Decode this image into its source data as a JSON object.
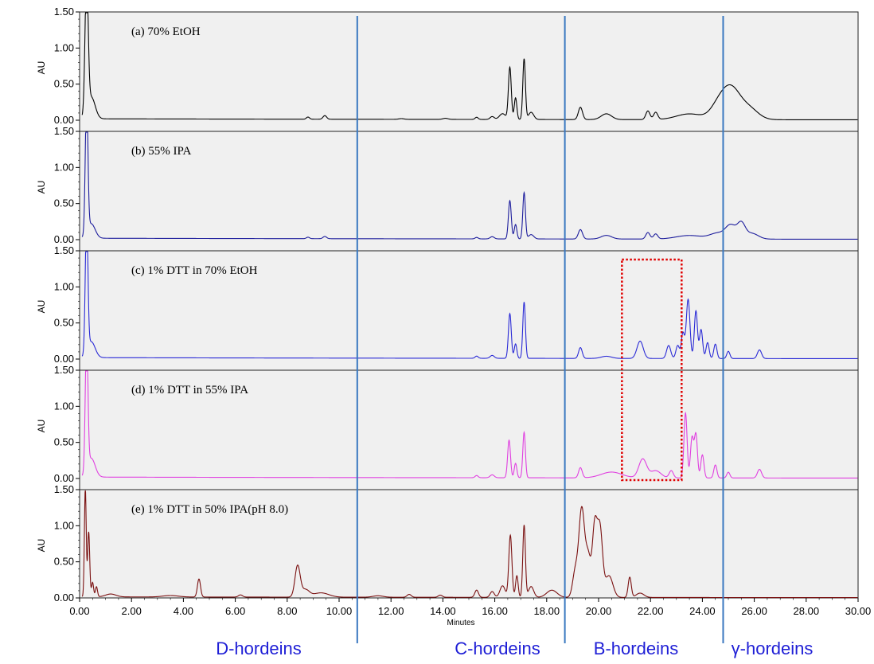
{
  "chart_data": {
    "type": "line",
    "x_axis": {
      "label": "Minutes",
      "range": [
        0,
        30
      ],
      "ticks": [
        "0.00",
        "2.00",
        "4.00",
        "6.00",
        "8.00",
        "10.00",
        "12.00",
        "14.00",
        "16.00",
        "18.00",
        "20.00",
        "22.00",
        "24.00",
        "26.00",
        "28.00",
        "30.00"
      ]
    },
    "y_axis": {
      "label": "AU",
      "range": [
        0,
        1.5
      ],
      "ticks": [
        "0.00",
        "0.50",
        "1.00",
        "1.50"
      ]
    },
    "grid": false,
    "dividers_minutes": [
      10.7,
      18.7,
      24.8
    ],
    "regions": [
      "D-hordeins",
      "C-hordeins",
      "B-hordeins",
      "γ-hordeins"
    ],
    "highlight_box": {
      "x_range": [
        20.9,
        23.2
      ],
      "panels": [
        "c",
        "d"
      ],
      "color": "#e00000"
    },
    "panels": [
      {
        "id": "a",
        "title": "(a) 70% EtOH",
        "color": "#000000",
        "baseline": 0.02,
        "peaks": [
          [
            0.27,
            1.9,
            0.06
          ],
          [
            0.45,
            0.3,
            0.15
          ],
          [
            8.8,
            0.03,
            0.06
          ],
          [
            9.45,
            0.05,
            0.07
          ],
          [
            12.4,
            0.01,
            0.1
          ],
          [
            14.1,
            0.015,
            0.1
          ],
          [
            15.3,
            0.03,
            0.06
          ],
          [
            15.9,
            0.04,
            0.08
          ],
          [
            16.3,
            0.08,
            0.12
          ],
          [
            16.58,
            0.72,
            0.055
          ],
          [
            16.8,
            0.3,
            0.05
          ],
          [
            17.13,
            0.84,
            0.05
          ],
          [
            17.4,
            0.1,
            0.1
          ],
          [
            19.3,
            0.17,
            0.08
          ],
          [
            20.3,
            0.08,
            0.2
          ],
          [
            21.9,
            0.12,
            0.08
          ],
          [
            22.2,
            0.1,
            0.08
          ],
          [
            23.5,
            0.08,
            0.5
          ],
          [
            24.6,
            0.16,
            0.3
          ],
          [
            25.1,
            0.42,
            0.35
          ],
          [
            25.8,
            0.15,
            0.35
          ]
        ]
      },
      {
        "id": "b",
        "title": "(b) 55% IPA",
        "color": "#1c1c9c",
        "baseline": 0.02,
        "peaks": [
          [
            0.27,
            1.9,
            0.05
          ],
          [
            0.45,
            0.2,
            0.15
          ],
          [
            8.8,
            0.02,
            0.06
          ],
          [
            9.45,
            0.03,
            0.07
          ],
          [
            15.3,
            0.02,
            0.06
          ],
          [
            15.9,
            0.03,
            0.08
          ],
          [
            16.58,
            0.53,
            0.055
          ],
          [
            16.8,
            0.2,
            0.05
          ],
          [
            17.13,
            0.64,
            0.05
          ],
          [
            17.4,
            0.06,
            0.1
          ],
          [
            19.3,
            0.13,
            0.08
          ],
          [
            20.3,
            0.05,
            0.2
          ],
          [
            21.9,
            0.09,
            0.08
          ],
          [
            22.2,
            0.07,
            0.08
          ],
          [
            23.5,
            0.05,
            0.5
          ],
          [
            24.6,
            0.08,
            0.3
          ],
          [
            25.1,
            0.18,
            0.2
          ],
          [
            25.5,
            0.2,
            0.15
          ],
          [
            25.9,
            0.08,
            0.25
          ]
        ]
      },
      {
        "id": "c",
        "title": "(c) 1% DTT in 70% EtOH",
        "color": "#2a2ad6",
        "baseline": 0.02,
        "peaks": [
          [
            0.27,
            1.9,
            0.05
          ],
          [
            0.45,
            0.22,
            0.15
          ],
          [
            15.3,
            0.03,
            0.06
          ],
          [
            15.9,
            0.04,
            0.08
          ],
          [
            16.58,
            0.62,
            0.055
          ],
          [
            16.8,
            0.2,
            0.05
          ],
          [
            17.13,
            0.78,
            0.05
          ],
          [
            19.3,
            0.15,
            0.07
          ],
          [
            20.3,
            0.03,
            0.2
          ],
          [
            21.6,
            0.24,
            0.12
          ],
          [
            22.7,
            0.18,
            0.08
          ],
          [
            23.05,
            0.18,
            0.07
          ],
          [
            23.25,
            0.35,
            0.06
          ],
          [
            23.45,
            0.82,
            0.07
          ],
          [
            23.75,
            0.66,
            0.06
          ],
          [
            23.95,
            0.4,
            0.06
          ],
          [
            24.2,
            0.22,
            0.06
          ],
          [
            24.5,
            0.2,
            0.06
          ],
          [
            25.0,
            0.1,
            0.06
          ],
          [
            26.2,
            0.12,
            0.08
          ]
        ]
      },
      {
        "id": "d",
        "title": "(d) 1% DTT in  55% IPA",
        "color": "#e040e0",
        "baseline": 0.02,
        "peaks": [
          [
            0.27,
            1.9,
            0.05
          ],
          [
            0.45,
            0.26,
            0.15
          ],
          [
            15.3,
            0.03,
            0.06
          ],
          [
            15.9,
            0.04,
            0.08
          ],
          [
            16.55,
            0.52,
            0.055
          ],
          [
            16.8,
            0.2,
            0.05
          ],
          [
            17.13,
            0.63,
            0.05
          ],
          [
            19.3,
            0.14,
            0.07
          ],
          [
            20.5,
            0.08,
            0.4
          ],
          [
            21.7,
            0.26,
            0.15
          ],
          [
            22.2,
            0.1,
            0.2
          ],
          [
            22.8,
            0.1,
            0.08
          ],
          [
            23.35,
            0.9,
            0.06
          ],
          [
            23.6,
            0.55,
            0.06
          ],
          [
            23.75,
            0.6,
            0.06
          ],
          [
            24.0,
            0.32,
            0.06
          ],
          [
            24.5,
            0.18,
            0.06
          ],
          [
            25.0,
            0.08,
            0.06
          ],
          [
            26.2,
            0.12,
            0.08
          ]
        ]
      },
      {
        "id": "e",
        "title": "(e) 1% DTT in 50% IPA(pH 8.0)",
        "color": "#7a1010",
        "baseline": 0.015,
        "peaks": [
          [
            0.22,
            1.5,
            0.035
          ],
          [
            0.35,
            0.9,
            0.04
          ],
          [
            0.5,
            0.2,
            0.04
          ],
          [
            0.65,
            0.14,
            0.04
          ],
          [
            1.2,
            0.04,
            0.2
          ],
          [
            3.5,
            0.02,
            0.3
          ],
          [
            4.6,
            0.25,
            0.06
          ],
          [
            6.2,
            0.03,
            0.08
          ],
          [
            8.4,
            0.43,
            0.1
          ],
          [
            8.7,
            0.1,
            0.15
          ],
          [
            9.3,
            0.06,
            0.3
          ],
          [
            11.5,
            0.02,
            0.2
          ],
          [
            12.7,
            0.04,
            0.08
          ],
          [
            13.9,
            0.03,
            0.08
          ],
          [
            15.3,
            0.1,
            0.07
          ],
          [
            15.9,
            0.08,
            0.08
          ],
          [
            16.3,
            0.16,
            0.1
          ],
          [
            16.6,
            0.86,
            0.06
          ],
          [
            16.85,
            0.3,
            0.05
          ],
          [
            17.13,
            1.0,
            0.05
          ],
          [
            17.4,
            0.15,
            0.1
          ],
          [
            18.2,
            0.1,
            0.2
          ],
          [
            19.1,
            0.35,
            0.1
          ],
          [
            19.35,
            1.22,
            0.11
          ],
          [
            19.6,
            0.55,
            0.1
          ],
          [
            19.85,
            0.95,
            0.09
          ],
          [
            20.05,
            0.95,
            0.1
          ],
          [
            20.4,
            0.3,
            0.15
          ],
          [
            21.2,
            0.28,
            0.06
          ],
          [
            21.6,
            0.06,
            0.15
          ]
        ]
      }
    ]
  }
}
